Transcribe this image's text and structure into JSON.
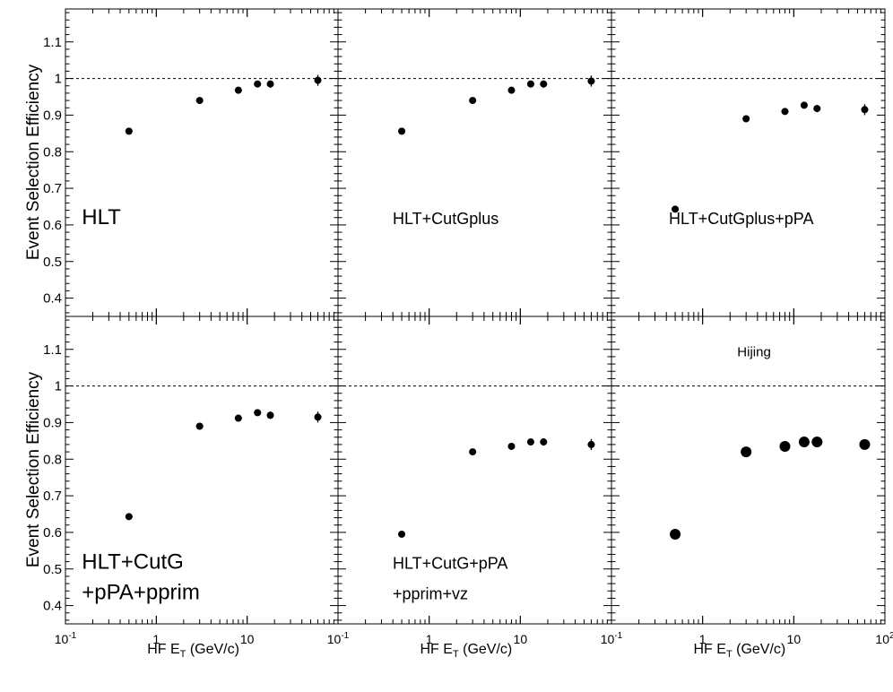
{
  "ytitle": "Event Selection Efficiency",
  "xtitle_main": "HF E",
  "xtitle_sub": "T",
  "xtitle_unit": " (GeV/c)",
  "x_tick_labels": [
    {
      "base": "10",
      "exp": "-1",
      "value": 0.1
    },
    {
      "base": "1",
      "exp": "",
      "value": 1
    },
    {
      "base": "10",
      "exp": "",
      "value": 10
    },
    {
      "base": "10",
      "exp": "2",
      "value": 100
    }
  ],
  "y_tick_labels": [
    "0.4",
    "0.5",
    "0.6",
    "0.7",
    "0.8",
    "0.9",
    "1",
    "1.1"
  ],
  "chart_data": [
    {
      "type": "scatter",
      "panel": "top-left",
      "labels": [
        "HLT"
      ],
      "x": [
        0.5,
        3.0,
        8.0,
        13.0,
        18.0,
        60.0
      ],
      "y": [
        0.856,
        0.94,
        0.968,
        0.985,
        0.985,
        0.995
      ],
      "y_err": [
        0.004,
        0.004,
        0.005,
        0.008,
        0.01,
        0.015
      ],
      "xscale": "log",
      "xlim": [
        0.1,
        100
      ],
      "ylim": [
        0.35,
        1.19
      ],
      "reference_line": 1.0
    },
    {
      "type": "scatter",
      "panel": "top-middle",
      "labels": [
        "HLT+CutGplus"
      ],
      "x": [
        0.5,
        3.0,
        8.0,
        13.0,
        18.0,
        60.0
      ],
      "y": [
        0.856,
        0.94,
        0.968,
        0.985,
        0.985,
        0.993
      ],
      "y_err": [
        0.004,
        0.004,
        0.005,
        0.008,
        0.01,
        0.015
      ],
      "xscale": "log",
      "xlim": [
        0.1,
        100
      ],
      "ylim": [
        0.35,
        1.19
      ],
      "reference_line": 1.0
    },
    {
      "type": "scatter",
      "panel": "top-right",
      "labels": [
        "HLT+CutGplus+pPA"
      ],
      "x": [
        0.5,
        3.0,
        8.0,
        13.0,
        18.0,
        60.0
      ],
      "y": [
        0.643,
        0.89,
        0.91,
        0.927,
        0.918,
        0.915
      ],
      "y_err": [
        0.004,
        0.004,
        0.005,
        0.008,
        0.01,
        0.015
      ],
      "xscale": "log",
      "xlim": [
        0.1,
        100
      ],
      "ylim": [
        0.35,
        1.19
      ],
      "reference_line": 1.0
    },
    {
      "type": "scatter",
      "panel": "bottom-left",
      "labels": [
        "HLT+CutG",
        "+pPA+pprim"
      ],
      "x": [
        0.5,
        3.0,
        8.0,
        13.0,
        18.0,
        60.0
      ],
      "y": [
        0.643,
        0.89,
        0.912,
        0.927,
        0.92,
        0.915
      ],
      "y_err": [
        0.004,
        0.004,
        0.005,
        0.008,
        0.01,
        0.015
      ],
      "xscale": "log",
      "xlim": [
        0.1,
        100
      ],
      "ylim": [
        0.35,
        1.19
      ],
      "reference_line": 1.0
    },
    {
      "type": "scatter",
      "panel": "bottom-middle",
      "labels": [
        "HLT+CutG+pPA",
        "+pprim+vz"
      ],
      "x": [
        0.5,
        3.0,
        8.0,
        13.0,
        18.0,
        60.0
      ],
      "y": [
        0.595,
        0.82,
        0.835,
        0.847,
        0.847,
        0.84
      ],
      "y_err": [
        0.004,
        0.004,
        0.005,
        0.008,
        0.01,
        0.015
      ],
      "xscale": "log",
      "xlim": [
        0.1,
        100
      ],
      "ylim": [
        0.35,
        1.19
      ],
      "reference_line": 1.0
    },
    {
      "type": "scatter",
      "panel": "bottom-right",
      "labels": [
        "Hijing"
      ],
      "x": [
        0.5,
        3.0,
        8.0,
        13.0,
        18.0,
        60.0
      ],
      "y": [
        0.595,
        0.82,
        0.835,
        0.847,
        0.847,
        0.84
      ],
      "y_err": [
        0,
        0,
        0,
        0,
        0,
        0
      ],
      "marker": "large",
      "xscale": "log",
      "xlim": [
        0.1,
        100
      ],
      "ylim": [
        0.35,
        1.19
      ],
      "reference_line": 1.0
    }
  ]
}
